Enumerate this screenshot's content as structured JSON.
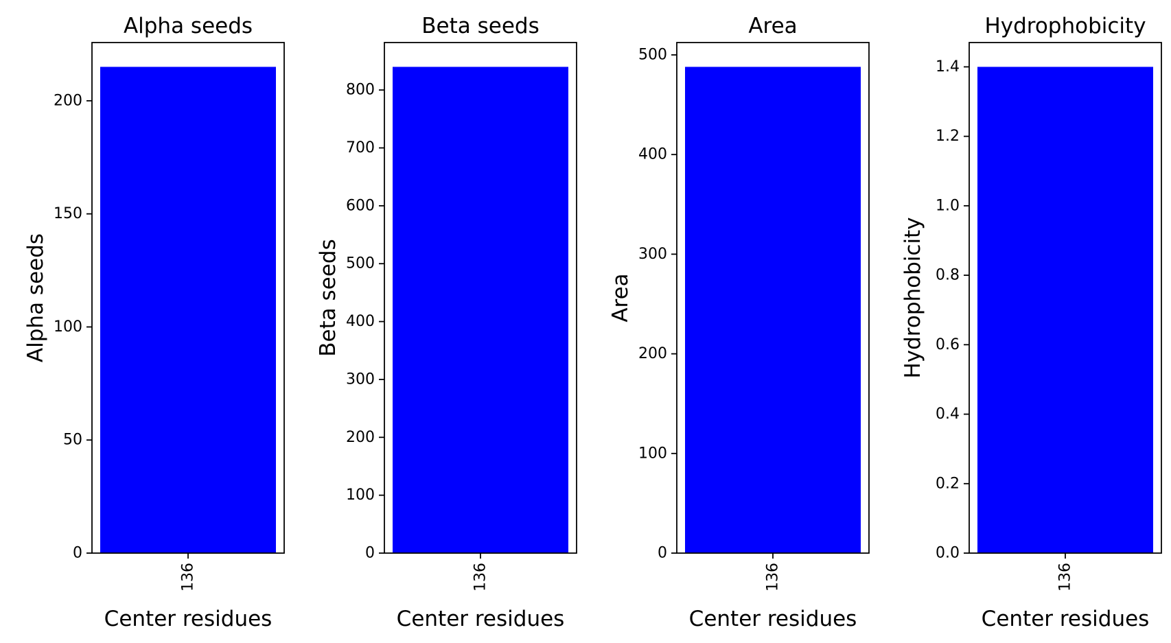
{
  "chart_data": [
    {
      "type": "bar",
      "title": "Alpha seeds",
      "xlabel": "Center residues",
      "ylabel": "Alpha seeds",
      "categories": [
        "136"
      ],
      "values": [
        215
      ],
      "ylim": [
        0,
        225.75
      ],
      "yticks": [
        0,
        50,
        100,
        150,
        200
      ],
      "ytick_labels": [
        "0",
        "50",
        "100",
        "150",
        "200"
      ],
      "bar_color": "#0000ff",
      "grid": false,
      "legend": false
    },
    {
      "type": "bar",
      "title": "Beta seeds",
      "xlabel": "Center residues",
      "ylabel": "Beta seeds",
      "categories": [
        "136"
      ],
      "values": [
        840
      ],
      "ylim": [
        0,
        882
      ],
      "yticks": [
        0,
        100,
        200,
        300,
        400,
        500,
        600,
        700,
        800
      ],
      "ytick_labels": [
        "0",
        "100",
        "200",
        "300",
        "400",
        "500",
        "600",
        "700",
        "800"
      ],
      "bar_color": "#0000ff",
      "grid": false,
      "legend": false
    },
    {
      "type": "bar",
      "title": "Area",
      "xlabel": "Center residues",
      "ylabel": "Area",
      "categories": [
        "136"
      ],
      "values": [
        488
      ],
      "ylim": [
        0,
        512.4
      ],
      "yticks": [
        0,
        100,
        200,
        300,
        400,
        500
      ],
      "ytick_labels": [
        "0",
        "100",
        "200",
        "300",
        "400",
        "500"
      ],
      "bar_color": "#0000ff",
      "grid": false,
      "legend": false
    },
    {
      "type": "bar",
      "title": "Hydrophobicity",
      "xlabel": "Center residues",
      "ylabel": "Hydrophobicity",
      "categories": [
        "136"
      ],
      "values": [
        1.4
      ],
      "ylim": [
        0,
        1.47
      ],
      "yticks": [
        0,
        0.2,
        0.4,
        0.6,
        0.8,
        1.0,
        1.2,
        1.4
      ],
      "ytick_labels": [
        "0.0",
        "0.2",
        "0.4",
        "0.6",
        "0.8",
        "1.0",
        "1.2",
        "1.4"
      ],
      "bar_color": "#0000ff",
      "grid": false,
      "legend": false
    }
  ]
}
